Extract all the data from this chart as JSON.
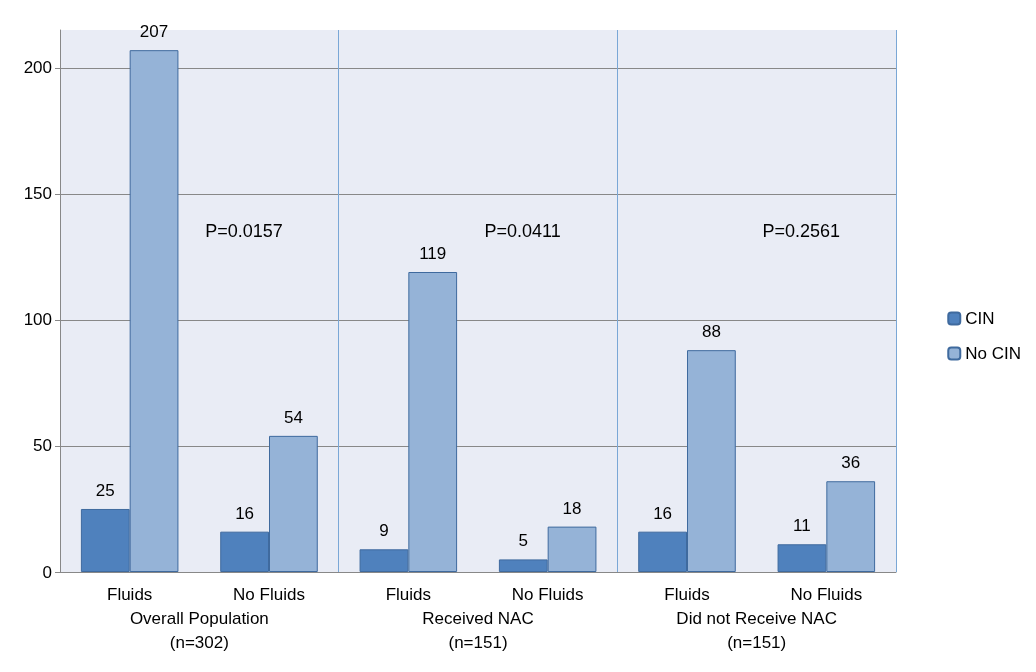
{
  "chart_data": {
    "type": "bar",
    "categories": [
      "Fluids",
      "No Fluids",
      "Fluids",
      "No Fluids",
      "Fluids",
      "No Fluids"
    ],
    "series": [
      {
        "name": "CIN",
        "color": "#4f81bd",
        "values": [
          25,
          16,
          9,
          5,
          16,
          11
        ]
      },
      {
        "name": "No CIN",
        "color": "#95b3d7",
        "values": [
          207,
          54,
          119,
          18,
          88,
          36
        ]
      }
    ],
    "annotations": [
      "Overall Population\n(n=302)",
      "Received NAC\n(n=151)",
      "Did not Receive NAC\n(n=151)",
      "P=0.0157",
      "P=0.0411",
      "P=0.2561"
    ],
    "ylim": [
      0,
      215
    ],
    "yticks": [
      0,
      50,
      100,
      150,
      200
    ],
    "grid": "y",
    "legend": "right",
    "data_labels": true
  }
}
